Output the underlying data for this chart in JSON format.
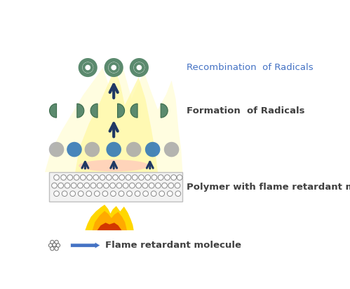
{
  "bg_color": "#ffffff",
  "text_recombination": "Recombination  of Radicals",
  "text_formation": "Formation  of Radicals",
  "text_polymer": "Polymer with flame retardant molecule",
  "text_flame_legend": "Flame retardant molecule",
  "text_color_blue": "#4472c4",
  "text_color_dark": "#404040",
  "arrow_color": "#1f3864",
  "radical_ring_color": "#5b8a6e",
  "radical_ring_edge": "#3a6a4a",
  "blue_mol_fill": "#2e75b6",
  "gray_mol_fill": "#a0a0a0",
  "legend_arrow_color": "#4472c4",
  "polymer_box_fill": "#f2f2f2",
  "polymer_box_edge": "#bfbfbf",
  "flame_pale": "#fffde0",
  "flame_yellow": "#ffd700",
  "flame_orange": "#ffa500",
  "flame_red": "#cc2200",
  "pink_blush": "#ffb6c1"
}
